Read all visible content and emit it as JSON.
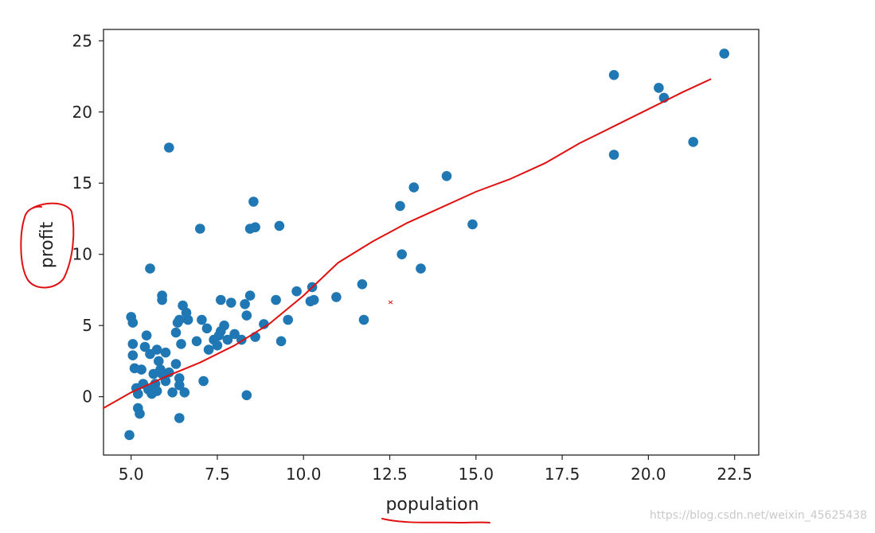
{
  "chart_data": {
    "type": "scatter",
    "xlabel": "population",
    "ylabel": "profit",
    "xlim": [
      4.2,
      23.2
    ],
    "ylim": [
      -4.1,
      25.8
    ],
    "xticks": [
      "5.0",
      "7.5",
      "10.0",
      "12.5",
      "15.0",
      "17.5",
      "20.0",
      "22.5"
    ],
    "yticks": [
      "0",
      "5",
      "10",
      "15",
      "20",
      "25"
    ],
    "grid": false,
    "marker_color": "#1f77b4",
    "fit_line_color": "#e01010",
    "annotation_color": "#e01010",
    "fit_line": [
      [
        4.2,
        -0.8
      ],
      [
        5.0,
        0.3
      ],
      [
        6.0,
        1.4
      ],
      [
        7.0,
        2.4
      ],
      [
        8.0,
        3.6
      ],
      [
        9.0,
        5.1
      ],
      [
        10.0,
        7.1
      ],
      [
        11.0,
        9.4
      ],
      [
        12.0,
        10.9
      ],
      [
        13.0,
        12.2
      ],
      [
        14.0,
        13.3
      ],
      [
        15.0,
        14.4
      ],
      [
        16.0,
        15.3
      ],
      [
        17.0,
        16.4
      ],
      [
        18.0,
        17.8
      ],
      [
        19.0,
        19.0
      ],
      [
        20.0,
        20.2
      ],
      [
        21.0,
        21.4
      ],
      [
        21.8,
        22.3
      ]
    ],
    "points": [
      [
        5.0,
        5.6
      ],
      [
        5.05,
        5.2
      ],
      [
        5.05,
        3.7
      ],
      [
        5.05,
        2.9
      ],
      [
        5.1,
        2.0
      ],
      [
        5.15,
        0.6
      ],
      [
        5.2,
        0.2
      ],
      [
        5.2,
        -0.8
      ],
      [
        5.25,
        -1.2
      ],
      [
        4.95,
        -2.7
      ],
      [
        5.3,
        1.9
      ],
      [
        5.35,
        0.9
      ],
      [
        5.4,
        3.5
      ],
      [
        5.45,
        4.3
      ],
      [
        5.5,
        0.5
      ],
      [
        5.55,
        9.0
      ],
      [
        5.55,
        3.0
      ],
      [
        5.6,
        0.2
      ],
      [
        5.65,
        1.6
      ],
      [
        5.7,
        0.9
      ],
      [
        5.75,
        3.3
      ],
      [
        5.75,
        0.4
      ],
      [
        5.8,
        2.5
      ],
      [
        5.85,
        1.9
      ],
      [
        5.9,
        6.8
      ],
      [
        5.9,
        7.1
      ],
      [
        5.9,
        1.6
      ],
      [
        6.0,
        3.1
      ],
      [
        6.0,
        1.1
      ],
      [
        6.1,
        17.5
      ],
      [
        6.1,
        1.7
      ],
      [
        6.2,
        0.3
      ],
      [
        6.3,
        2.3
      ],
      [
        6.3,
        4.5
      ],
      [
        6.35,
        5.2
      ],
      [
        6.4,
        5.4
      ],
      [
        6.4,
        1.3
      ],
      [
        6.4,
        0.8
      ],
      [
        6.4,
        -1.5
      ],
      [
        6.45,
        3.7
      ],
      [
        6.5,
        6.4
      ],
      [
        6.55,
        0.3
      ],
      [
        6.6,
        5.9
      ],
      [
        6.65,
        5.4
      ],
      [
        6.9,
        3.9
      ],
      [
        7.0,
        11.8
      ],
      [
        7.05,
        5.4
      ],
      [
        7.1,
        1.1
      ],
      [
        7.2,
        4.8
      ],
      [
        7.25,
        3.3
      ],
      [
        7.4,
        4.0
      ],
      [
        7.5,
        3.6
      ],
      [
        7.55,
        4.3
      ],
      [
        7.6,
        4.6
      ],
      [
        7.6,
        6.8
      ],
      [
        7.7,
        5.0
      ],
      [
        7.8,
        4.0
      ],
      [
        7.9,
        6.6
      ],
      [
        8.0,
        4.4
      ],
      [
        8.2,
        4.0
      ],
      [
        8.3,
        6.5
      ],
      [
        8.35,
        5.7
      ],
      [
        8.35,
        0.1
      ],
      [
        8.45,
        7.1
      ],
      [
        8.45,
        11.8
      ],
      [
        8.55,
        13.7
      ],
      [
        8.6,
        11.9
      ],
      [
        8.6,
        4.2
      ],
      [
        8.85,
        5.1
      ],
      [
        9.2,
        6.8
      ],
      [
        9.3,
        12.0
      ],
      [
        9.35,
        3.9
      ],
      [
        9.55,
        5.4
      ],
      [
        9.8,
        7.4
      ],
      [
        10.2,
        6.7
      ],
      [
        10.25,
        7.7
      ],
      [
        10.3,
        6.8
      ],
      [
        10.95,
        7.0
      ],
      [
        11.7,
        7.9
      ],
      [
        11.75,
        5.4
      ],
      [
        12.8,
        13.4
      ],
      [
        12.85,
        10.0
      ],
      [
        13.2,
        14.7
      ],
      [
        13.4,
        9.0
      ],
      [
        14.15,
        15.5
      ],
      [
        14.9,
        12.1
      ],
      [
        19.0,
        22.6
      ],
      [
        19.0,
        17.0
      ],
      [
        20.3,
        21.7
      ],
      [
        20.45,
        21.0
      ],
      [
        21.3,
        17.9
      ],
      [
        22.2,
        24.1
      ]
    ]
  },
  "watermark": "https://blog.csdn.net/weixin_45625438"
}
